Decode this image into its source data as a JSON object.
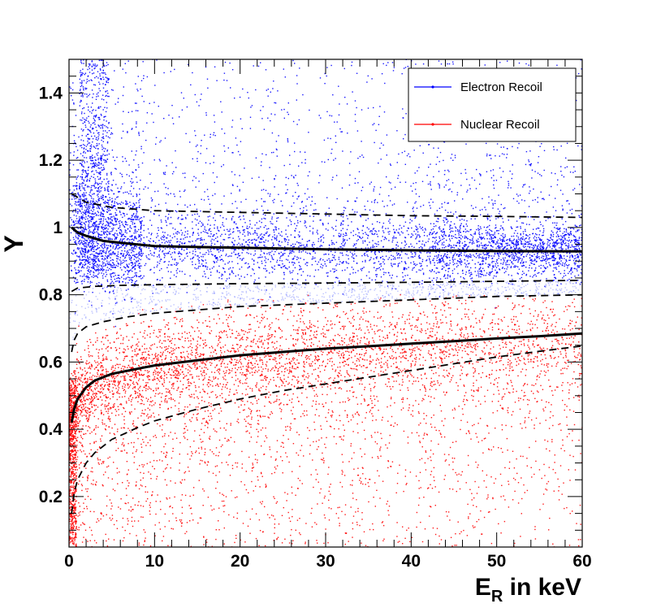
{
  "chart_data": {
    "type": "scatter",
    "title": "",
    "xlabel": "E",
    "xlabel_sub": "R",
    "xlabel_suffix": " in keV",
    "ylabel": "Y",
    "xlim": [
      0,
      60
    ],
    "ylim": [
      0.05,
      1.5
    ],
    "x_ticks": [
      0,
      10,
      20,
      30,
      40,
      50,
      60
    ],
    "x_tick_labels": [
      "0",
      "10",
      "20",
      "30",
      "40",
      "50",
      "60"
    ],
    "y_ticks": [
      0.2,
      0.4,
      0.6,
      0.8,
      1.0,
      1.2,
      1.4
    ],
    "y_tick_labels": [
      "0.2",
      "0.4",
      "0.6",
      "0.8",
      "1",
      "1.2",
      "1.4"
    ],
    "grid": false,
    "legend_position": "top-right",
    "series": [
      {
        "name": "Electron Recoil",
        "color": "#0000ff",
        "description_mean_band": [
          [
            0.3,
            1.0
          ],
          [
            2,
            0.975
          ],
          [
            5,
            0.955
          ],
          [
            10,
            0.945
          ],
          [
            20,
            0.94
          ],
          [
            30,
            0.935
          ],
          [
            40,
            0.932
          ],
          [
            50,
            0.93
          ],
          [
            60,
            0.93
          ]
        ]
      },
      {
        "name": "Nuclear Recoil",
        "color": "#ff0000",
        "description_mean_band": [
          [
            0.3,
            0.42
          ],
          [
            1,
            0.49
          ],
          [
            2,
            0.525
          ],
          [
            5,
            0.565
          ],
          [
            10,
            0.59
          ],
          [
            20,
            0.62
          ],
          [
            30,
            0.64
          ],
          [
            40,
            0.655
          ],
          [
            50,
            0.67
          ],
          [
            60,
            0.685
          ]
        ]
      }
    ],
    "curves": [
      {
        "name": "ER mean",
        "style": "solid",
        "points": [
          [
            0.3,
            1.0
          ],
          [
            1,
            0.985
          ],
          [
            2,
            0.975
          ],
          [
            4,
            0.96
          ],
          [
            7,
            0.952
          ],
          [
            10,
            0.945
          ],
          [
            15,
            0.942
          ],
          [
            20,
            0.94
          ],
          [
            30,
            0.935
          ],
          [
            40,
            0.932
          ],
          [
            50,
            0.93
          ],
          [
            60,
            0.929
          ]
        ]
      },
      {
        "name": "ER upper",
        "style": "dashed",
        "points": [
          [
            0.3,
            1.1
          ],
          [
            1,
            1.09
          ],
          [
            2,
            1.075
          ],
          [
            5,
            1.06
          ],
          [
            10,
            1.05
          ],
          [
            20,
            1.045
          ],
          [
            30,
            1.04
          ],
          [
            40,
            1.035
          ],
          [
            50,
            1.033
          ],
          [
            60,
            1.03
          ]
        ]
      },
      {
        "name": "ER lower",
        "style": "dashed",
        "points": [
          [
            0.3,
            0.81
          ],
          [
            1,
            0.82
          ],
          [
            3,
            0.825
          ],
          [
            6,
            0.828
          ],
          [
            10,
            0.83
          ],
          [
            20,
            0.833
          ],
          [
            30,
            0.835
          ],
          [
            40,
            0.837
          ],
          [
            50,
            0.84
          ],
          [
            60,
            0.843
          ]
        ]
      },
      {
        "name": "NR mean",
        "style": "solid",
        "points": [
          [
            0.3,
            0.42
          ],
          [
            0.6,
            0.46
          ],
          [
            1,
            0.49
          ],
          [
            2,
            0.525
          ],
          [
            3,
            0.545
          ],
          [
            5,
            0.565
          ],
          [
            8,
            0.58
          ],
          [
            10,
            0.59
          ],
          [
            15,
            0.605
          ],
          [
            20,
            0.62
          ],
          [
            25,
            0.63
          ],
          [
            30,
            0.64
          ],
          [
            35,
            0.647
          ],
          [
            40,
            0.655
          ],
          [
            45,
            0.662
          ],
          [
            50,
            0.67
          ],
          [
            55,
            0.677
          ],
          [
            60,
            0.685
          ]
        ]
      },
      {
        "name": "NR upper",
        "style": "dashed",
        "points": [
          [
            0.3,
            0.63
          ],
          [
            0.6,
            0.665
          ],
          [
            1,
            0.685
          ],
          [
            2,
            0.705
          ],
          [
            4,
            0.72
          ],
          [
            7,
            0.735
          ],
          [
            10,
            0.745
          ],
          [
            15,
            0.755
          ],
          [
            20,
            0.765
          ],
          [
            30,
            0.775
          ],
          [
            40,
            0.785
          ],
          [
            50,
            0.795
          ],
          [
            60,
            0.8
          ]
        ]
      },
      {
        "name": "NR lower",
        "style": "dashed",
        "points": [
          [
            0.3,
            0.15
          ],
          [
            0.6,
            0.21
          ],
          [
            1,
            0.25
          ],
          [
            2,
            0.3
          ],
          [
            3,
            0.33
          ],
          [
            5,
            0.37
          ],
          [
            8,
            0.405
          ],
          [
            10,
            0.425
          ],
          [
            15,
            0.46
          ],
          [
            20,
            0.49
          ],
          [
            25,
            0.515
          ],
          [
            30,
            0.535
          ],
          [
            35,
            0.555
          ],
          [
            40,
            0.575
          ],
          [
            45,
            0.595
          ],
          [
            50,
            0.615
          ],
          [
            55,
            0.632
          ],
          [
            60,
            0.648
          ]
        ]
      }
    ]
  }
}
